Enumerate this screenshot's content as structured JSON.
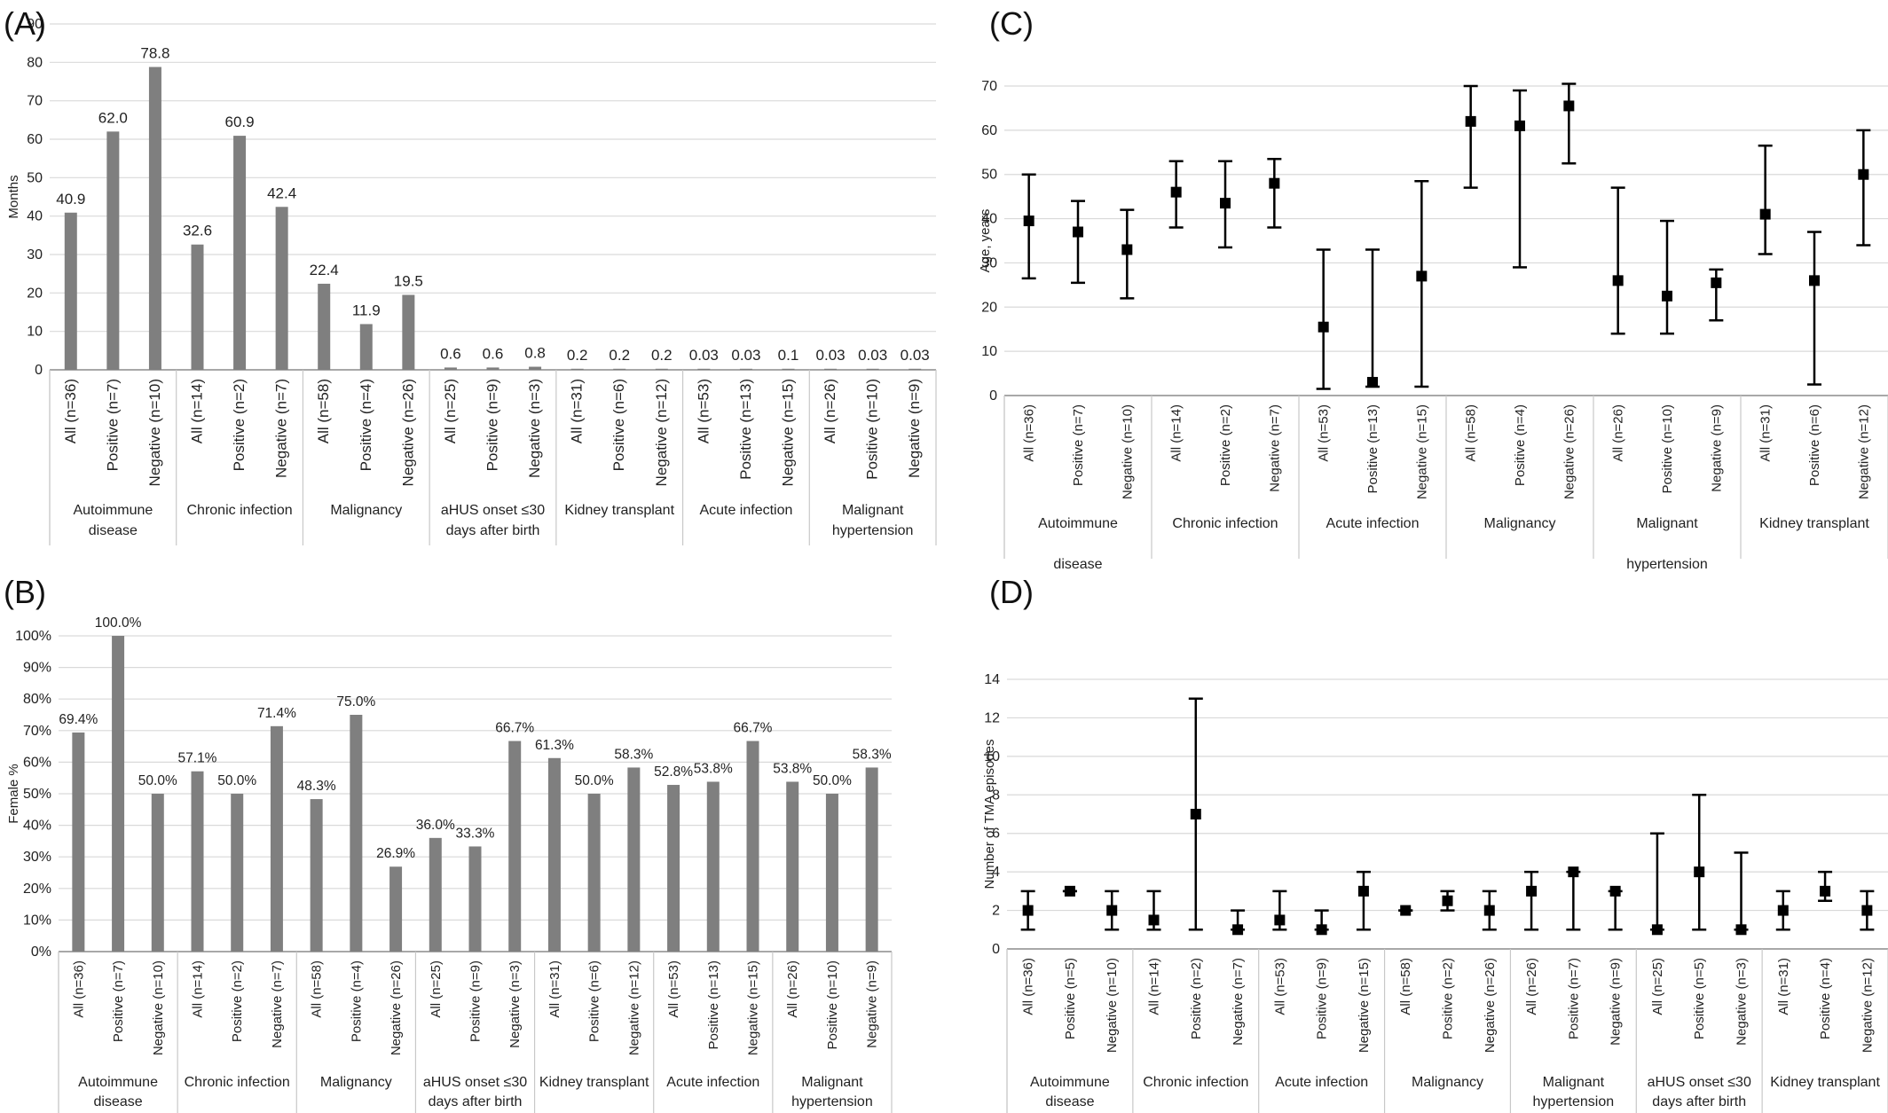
{
  "chart_data": [
    {
      "panel": "(A)",
      "type": "bar",
      "ylabel": "Months",
      "ylim": [
        0,
        90
      ],
      "yticks": [
        0,
        10,
        20,
        30,
        40,
        50,
        60,
        70,
        80,
        90
      ],
      "bar_color": "#7f7f7f",
      "groups": [
        {
          "label": [
            "Autoimmune",
            "disease"
          ],
          "categories": [
            "All (n=36)",
            "Positive (n=7)",
            "Negative (n=10)"
          ],
          "values": [
            40.9,
            62.0,
            78.8
          ],
          "labels": [
            "40.9",
            "62.0",
            "78.8"
          ]
        },
        {
          "label": [
            "Chronic infection"
          ],
          "categories": [
            "All (n=14)",
            "Positive (n=2)",
            "Negative (n=7)"
          ],
          "values": [
            32.6,
            60.9,
            42.4
          ],
          "labels": [
            "32.6",
            "60.9",
            "42.4"
          ]
        },
        {
          "label": [
            "Malignancy"
          ],
          "categories": [
            "All (n=58)",
            "Positive (n=4)",
            "Negative (n=26)"
          ],
          "values": [
            22.4,
            11.9,
            19.5
          ],
          "labels": [
            "22.4",
            "11.9",
            "19.5"
          ]
        },
        {
          "label": [
            "aHUS onset ≤30",
            "days after birth"
          ],
          "categories": [
            "All (n=25)",
            "Positive (n=9)",
            "Negative (n=3)"
          ],
          "values": [
            0.6,
            0.6,
            0.8
          ],
          "labels": [
            "0.6",
            "0.6",
            "0.8"
          ]
        },
        {
          "label": [
            "Kidney transplant"
          ],
          "categories": [
            "All (n=31)",
            "Positive (n=6)",
            "Negative (n=12)"
          ],
          "values": [
            0.2,
            0.2,
            0.2
          ],
          "labels": [
            "0.2",
            "0.2",
            "0.2"
          ]
        },
        {
          "label": [
            "Acute infection"
          ],
          "categories": [
            "All (n=53)",
            "Positive (n=13)",
            "Negative (n=15)"
          ],
          "values": [
            0.03,
            0.03,
            0.1
          ],
          "labels": [
            "0.03",
            "0.03",
            "0.1"
          ]
        },
        {
          "label": [
            "Malignant",
            "hypertension"
          ],
          "categories": [
            "All (n=26)",
            "Positive (n=10)",
            "Negative (n=9)"
          ],
          "values": [
            0.03,
            0.03,
            0.03
          ],
          "labels": [
            "0.03",
            "0.03",
            "0.03"
          ]
        }
      ]
    },
    {
      "panel": "(B)",
      "type": "bar",
      "ylabel": "Female %",
      "ylim": [
        0,
        100
      ],
      "yticks": [
        0,
        10,
        20,
        30,
        40,
        50,
        60,
        70,
        80,
        90,
        100
      ],
      "ytick_labels": [
        "0%",
        "10%",
        "20%",
        "30%",
        "40%",
        "50%",
        "60%",
        "70%",
        "80%",
        "90%",
        "100%"
      ],
      "bar_color": "#7f7f7f",
      "groups": [
        {
          "label": [
            "Autoimmune",
            "disease"
          ],
          "categories": [
            "All (n=36)",
            "Positive (n=7)",
            "Negative (n=10)"
          ],
          "values": [
            69.4,
            100.0,
            50.0
          ],
          "labels": [
            "69.4%",
            "100.0%",
            "50.0%"
          ]
        },
        {
          "label": [
            "Chronic infection"
          ],
          "categories": [
            "All (n=14)",
            "Positive (n=2)",
            "Negative (n=7)"
          ],
          "values": [
            57.1,
            50.0,
            71.4
          ],
          "labels": [
            "57.1%",
            "50.0%",
            "71.4%"
          ]
        },
        {
          "label": [
            "Malignancy"
          ],
          "categories": [
            "All (n=58)",
            "Positive (n=4)",
            "Negative (n=26)"
          ],
          "values": [
            48.3,
            75.0,
            26.9
          ],
          "labels": [
            "48.3%",
            "75.0%",
            "26.9%"
          ]
        },
        {
          "label": [
            "aHUS onset ≤30",
            "days after birth"
          ],
          "categories": [
            "All (n=25)",
            "Positive (n=9)",
            "Negative (n=3)"
          ],
          "values": [
            36.0,
            33.3,
            66.7
          ],
          "labels": [
            "36.0%",
            "33.3%",
            "66.7%"
          ]
        },
        {
          "label": [
            "Kidney transplant"
          ],
          "categories": [
            "All (n=31)",
            "Positive (n=6)",
            "Negative (n=12)"
          ],
          "values": [
            61.3,
            50.0,
            58.3
          ],
          "labels": [
            "61.3%",
            "50.0%",
            "58.3%"
          ]
        },
        {
          "label": [
            "Acute infection"
          ],
          "categories": [
            "All (n=53)",
            "Positive (n=13)",
            "Negative (n=15)"
          ],
          "values": [
            52.8,
            53.8,
            66.7
          ],
          "labels": [
            "52.8%",
            "53.8%",
            "66.7%"
          ]
        },
        {
          "label": [
            "Malignant",
            "hypertension"
          ],
          "categories": [
            "All (n=26)",
            "Positive (n=10)",
            "Negative (n=9)"
          ],
          "values": [
            53.8,
            50.0,
            58.3
          ],
          "labels": [
            "53.8%",
            "50.0%",
            "58.3%"
          ]
        }
      ]
    },
    {
      "panel": "(C)",
      "type": "scatter",
      "ylabel": "Age, years",
      "ylim": [
        0,
        70
      ],
      "yticks": [
        0,
        10,
        20,
        30,
        40,
        50,
        60,
        70
      ],
      "groups": [
        {
          "label": [
            "Autoimmune",
            "disease"
          ],
          "categories": [
            "All (n=36)",
            "Positive (n=7)",
            "Negative (n=10)"
          ],
          "values": [
            39.5,
            37,
            33
          ],
          "low": [
            26.5,
            25.5,
            22
          ],
          "high": [
            50,
            44,
            42
          ]
        },
        {
          "label": [
            "Chronic infection"
          ],
          "categories": [
            "All (n=14)",
            "Positive (n=2)",
            "Negative (n=7)"
          ],
          "values": [
            46,
            43.5,
            48
          ],
          "low": [
            38,
            33.5,
            38
          ],
          "high": [
            53,
            53,
            53.5
          ]
        },
        {
          "label": [
            "Acute infection"
          ],
          "categories": [
            "All (n=53)",
            "Positive (n=13)",
            "Negative (n=15)"
          ],
          "values": [
            15.5,
            3,
            27
          ],
          "low": [
            1.5,
            2,
            2
          ],
          "high": [
            33,
            33,
            48.5
          ]
        },
        {
          "label": [
            "Malignancy"
          ],
          "categories": [
            "All (n=58)",
            "Positive (n=4)",
            "Negative (n=26)"
          ],
          "values": [
            62,
            61,
            65.5
          ],
          "low": [
            47,
            29,
            52.5
          ],
          "high": [
            70,
            69,
            70.5
          ]
        },
        {
          "label": [
            "Malignant",
            "hypertension"
          ],
          "categories": [
            "All (n=26)",
            "Positive (n=10)",
            "Negative (n=9)"
          ],
          "values": [
            26,
            22.5,
            25.5
          ],
          "low": [
            14,
            14,
            17
          ],
          "high": [
            47,
            39.5,
            28.5
          ]
        },
        {
          "label": [
            "Kidney transplant"
          ],
          "categories": [
            "All (n=31)",
            "Positive (n=6)",
            "Negative (n=12)"
          ],
          "values": [
            41,
            26,
            50
          ],
          "low": [
            32,
            2.5,
            34
          ],
          "high": [
            56.5,
            37,
            60
          ]
        }
      ]
    },
    {
      "panel": "(D)",
      "type": "scatter",
      "ylabel": "Number of TMA episodes",
      "ylim": [
        0,
        14
      ],
      "yticks": [
        0,
        2,
        4,
        6,
        8,
        10,
        12,
        14
      ],
      "groups": [
        {
          "label": [
            "Autoimmune",
            "disease"
          ],
          "categories": [
            "All (n=36)",
            "Positive (n=5)",
            "Negative (n=10)"
          ],
          "values": [
            2,
            3,
            2
          ],
          "low": [
            1,
            3,
            1
          ],
          "high": [
            3,
            3,
            3
          ]
        },
        {
          "label": [
            "Chronic infection"
          ],
          "categories": [
            "All (n=14)",
            "Positive (n=2)",
            "Negative (n=7)"
          ],
          "values": [
            1.5,
            7,
            1
          ],
          "low": [
            1,
            1,
            1
          ],
          "high": [
            3,
            13,
            2
          ]
        },
        {
          "label": [
            "Acute infection"
          ],
          "categories": [
            "All (n=53)",
            "Positive (n=9)",
            "Negative (n=15)"
          ],
          "values": [
            1.5,
            1,
            3
          ],
          "low": [
            1,
            1,
            1
          ],
          "high": [
            3,
            2,
            4
          ]
        },
        {
          "label": [
            "Malignancy"
          ],
          "categories": [
            "All (n=58)",
            "Positive (n=2)",
            "Negative (n=26)"
          ],
          "values": [
            2,
            2.5,
            2
          ],
          "low": [
            2,
            2,
            1
          ],
          "high": [
            2,
            3,
            3
          ]
        },
        {
          "label": [
            "Malignant",
            "hypertension"
          ],
          "categories": [
            "All (n=26)",
            "Positive (n=7)",
            "Negative (n=9)"
          ],
          "values": [
            3,
            4,
            3
          ],
          "low": [
            1,
            1,
            1
          ],
          "high": [
            4,
            4,
            3
          ]
        },
        {
          "label": [
            "aHUS onset ≤30",
            "days after birth"
          ],
          "categories": [
            "All (n=25)",
            "Positive (n=5)",
            "Negative (n=3)"
          ],
          "values": [
            1,
            4,
            1
          ],
          "low": [
            1,
            1,
            1
          ],
          "high": [
            6,
            8,
            5
          ]
        },
        {
          "label": [
            "Kidney transplant"
          ],
          "categories": [
            "All (n=31)",
            "Positive (n=4)",
            "Negative (n=12)"
          ],
          "values": [
            2,
            3,
            2
          ],
          "low": [
            1,
            2.5,
            1
          ],
          "high": [
            3,
            4,
            3
          ]
        }
      ]
    }
  ]
}
